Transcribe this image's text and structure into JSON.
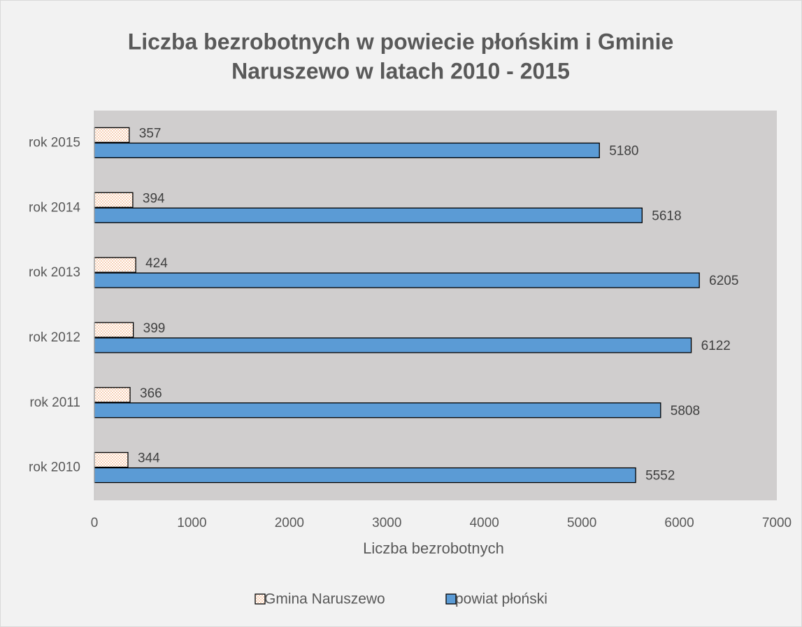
{
  "chart_data": {
    "type": "hbar",
    "title": [
      "Liczba bezrobotnych w powiecie płońskim i Gminie",
      "Naruszewo w latach 2010 - 2015"
    ],
    "x_label": "Liczba bezrobotnych",
    "categories": [
      "rok 2010",
      "rok 2011",
      "rok 2012",
      "rok 2013",
      "rok 2014",
      "rok 2015"
    ],
    "series": [
      {
        "name": "Gmina Naruszewo",
        "color": "#f4b183",
        "pattern": "dotted",
        "values": [
          344,
          366,
          399,
          424,
          394,
          357
        ]
      },
      {
        "name": "powiat płoński",
        "color": "#5b9bd5",
        "values": [
          5552,
          5808,
          6122,
          6205,
          5618,
          5180
        ]
      }
    ],
    "xlim": [
      0,
      7000
    ],
    "xticks": [
      0,
      1000,
      2000,
      3000,
      4000,
      5000,
      6000,
      7000
    ],
    "grid": false,
    "legend": "bottom"
  }
}
